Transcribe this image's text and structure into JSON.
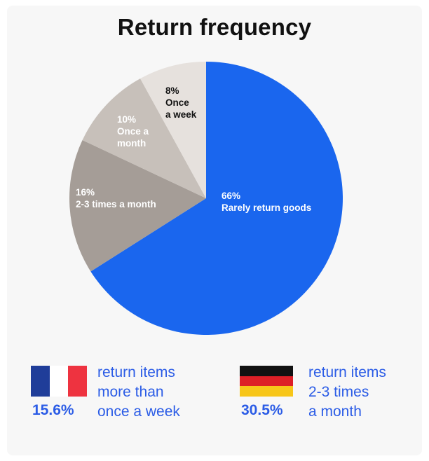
{
  "title": "Return frequency",
  "chart_data": {
    "type": "pie",
    "title": "Return frequency",
    "slices": [
      {
        "label": "Rarely return goods",
        "value": 66,
        "value_label": "66%",
        "color": "#1a66ee",
        "text_color": "#ffffff"
      },
      {
        "label": "2-3 times a month",
        "value": 16,
        "value_label": "16%",
        "color": "#a59d97",
        "text_color": "#ffffff"
      },
      {
        "label": "Once a month",
        "value": 10,
        "value_label": "10%",
        "color": "#c7c0ba",
        "text_color": "#ffffff"
      },
      {
        "label": "Once a week",
        "value": 8,
        "value_label": "8%",
        "color": "#e6e1dd",
        "text_color": "#111111"
      }
    ]
  },
  "stats": [
    {
      "country_flag": "france-flag",
      "percent": "15.6%",
      "text_lines": [
        "return items",
        "more than",
        "once a week"
      ]
    },
    {
      "country_flag": "germany-flag",
      "percent": "30.5%",
      "text_lines": [
        "return items",
        "2-3 times",
        "a month"
      ]
    }
  ],
  "colors": {
    "accent": "#2b5ce6",
    "france": [
      "#1f3d99",
      "#ffffff",
      "#ee3340"
    ],
    "germany": [
      "#111111",
      "#dd1f26",
      "#f7c619"
    ]
  }
}
